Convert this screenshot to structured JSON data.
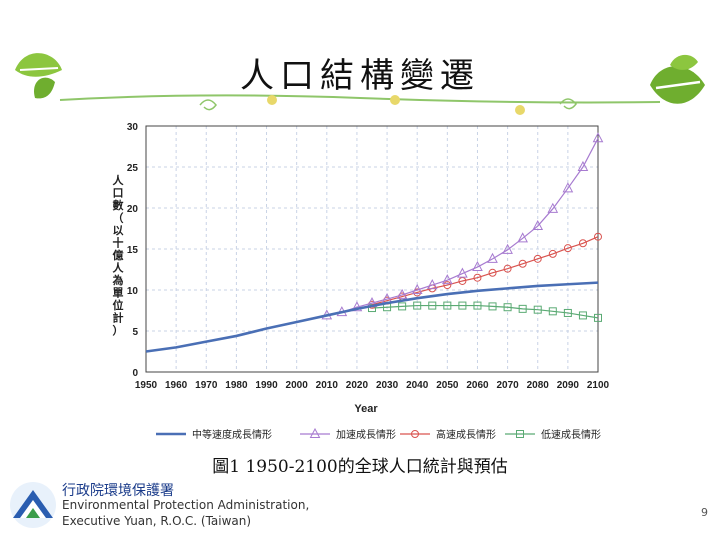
{
  "page": {
    "title": "人口結構變遷",
    "caption": "圖1 1950-2100的全球人口統計與預估",
    "org_zh": "行政院環境保護署",
    "org_en_line1": "Environmental Protection Administration,",
    "org_en_line2": "Executive Yuan, R.O.C. (Taiwan)",
    "page_number": "9"
  },
  "colors": {
    "medium": "#4a6fb5",
    "high_growth": "#a77bd0",
    "high": "#d9534f",
    "low": "#5aaa73",
    "leaf": "#7bbf3a"
  },
  "chart_data": {
    "type": "line",
    "xlabel": "Year",
    "ylabel": "人口數（以十億人為單位計）",
    "xlim": [
      1950,
      2100
    ],
    "ylim": [
      0,
      30
    ],
    "xticks": [
      1950,
      1960,
      1970,
      1980,
      1990,
      2000,
      2010,
      2020,
      2030,
      2040,
      2050,
      2060,
      2070,
      2080,
      2090,
      2100
    ],
    "yticks": [
      0,
      5,
      10,
      15,
      20,
      25,
      30
    ],
    "grid": true,
    "legend_position": "bottom",
    "series": [
      {
        "name": "中等速度成長情形",
        "marker": "none",
        "x": [
          1950,
          1960,
          1970,
          1980,
          1990,
          2000,
          2010,
          2020,
          2030,
          2040,
          2050,
          2060,
          2070,
          2080,
          2090,
          2100
        ],
        "values": [
          2.5,
          3.0,
          3.7,
          4.4,
          5.3,
          6.1,
          6.9,
          7.7,
          8.4,
          9.0,
          9.5,
          9.9,
          10.2,
          10.5,
          10.7,
          10.9
        ]
      },
      {
        "name": "加速成長情形",
        "marker": "triangle",
        "x": [
          2010,
          2015,
          2020,
          2025,
          2030,
          2035,
          2040,
          2045,
          2050,
          2055,
          2060,
          2065,
          2070,
          2075,
          2080,
          2085,
          2090,
          2095,
          2100
        ],
        "values": [
          6.9,
          7.3,
          7.9,
          8.4,
          8.9,
          9.4,
          10.0,
          10.6,
          11.2,
          12.0,
          12.8,
          13.8,
          14.9,
          16.3,
          17.8,
          19.9,
          22.4,
          25.0,
          28.5
        ]
      },
      {
        "name": "高速成長情形",
        "marker": "circle",
        "x": [
          2025,
          2030,
          2035,
          2040,
          2045,
          2050,
          2055,
          2060,
          2065,
          2070,
          2075,
          2080,
          2085,
          2090,
          2095,
          2100
        ],
        "values": [
          8.2,
          8.7,
          9.2,
          9.7,
          10.2,
          10.6,
          11.1,
          11.5,
          12.1,
          12.6,
          13.2,
          13.8,
          14.4,
          15.1,
          15.7,
          16.5
        ]
      },
      {
        "name": "低速成長情形",
        "marker": "square",
        "x": [
          2025,
          2030,
          2035,
          2040,
          2045,
          2050,
          2055,
          2060,
          2065,
          2070,
          2075,
          2080,
          2085,
          2090,
          2095,
          2100
        ],
        "values": [
          7.8,
          7.9,
          8.0,
          8.1,
          8.1,
          8.1,
          8.1,
          8.1,
          8.0,
          7.9,
          7.7,
          7.6,
          7.4,
          7.2,
          6.9,
          6.6
        ]
      }
    ]
  }
}
